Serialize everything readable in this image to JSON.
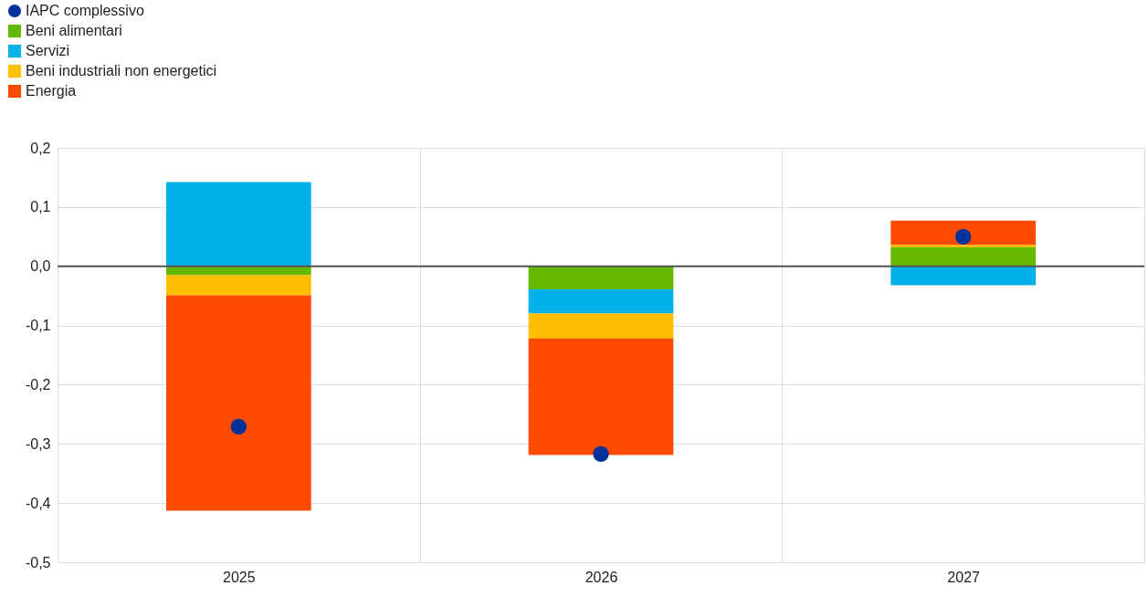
{
  "chart_data": {
    "type": "bar",
    "stacked": true,
    "categories": [
      "2025",
      "2026",
      "2027"
    ],
    "series": [
      {
        "name": "IAPC complessivo",
        "type": "scatter",
        "color": "#003299",
        "values": [
          -0.271,
          -0.317,
          0.05
        ]
      },
      {
        "name": "Beni alimentari",
        "color": "#65b800",
        "values": [
          -0.015,
          -0.039,
          0.032
        ]
      },
      {
        "name": "Servizi",
        "color": "#00b1ea",
        "values": [
          0.142,
          -0.041,
          -0.032
        ]
      },
      {
        "name": "Beni industriali non energetici",
        "color": "#ffbf00",
        "values": [
          -0.034,
          -0.042,
          0.004
        ]
      },
      {
        "name": "Energia",
        "color": "#ff4b00",
        "values": [
          -0.364,
          -0.197,
          0.041
        ]
      }
    ],
    "ylim": [
      -0.5,
      0.2
    ],
    "yticks": [
      {
        "value": -0.5,
        "label": "-0,5"
      },
      {
        "value": -0.4,
        "label": "-0,4"
      },
      {
        "value": -0.3,
        "label": "-0,3"
      },
      {
        "value": -0.2,
        "label": "-0,2"
      },
      {
        "value": -0.1,
        "label": "-0,1"
      },
      {
        "value": 0,
        "label": "0,0"
      },
      {
        "value": 0.1,
        "label": "0,1"
      },
      {
        "value": 0.2,
        "label": "0,2"
      }
    ],
    "ref_lines": [
      {
        "axis": "y",
        "value": 0,
        "color": "#555555"
      }
    ],
    "grid": true,
    "legend": "top left",
    "marker": "circle"
  }
}
